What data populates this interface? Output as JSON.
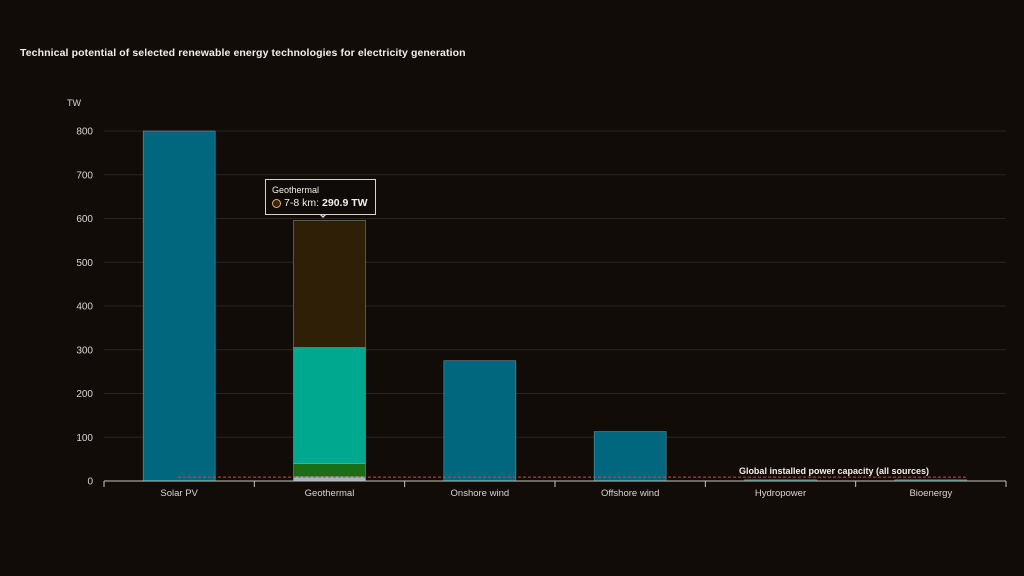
{
  "chart_data": {
    "type": "bar",
    "title": "Technical potential of selected renewable energy technologies for electricity generation",
    "unit": "TW",
    "ylim": [
      0,
      800
    ],
    "yticks": [
      0,
      100,
      200,
      300,
      400,
      500,
      600,
      700,
      800
    ],
    "grid": true,
    "categories": [
      "Solar PV",
      "Geothermal",
      "Onshore wind",
      "Offshore wind",
      "Hydropower",
      "Bioenergy"
    ],
    "bars": [
      {
        "category": "Solar PV",
        "segments": [
          {
            "value": 800,
            "color": "#00677f"
          }
        ]
      },
      {
        "category": "Geothermal",
        "segments": [
          {
            "value": 10,
            "color": "#9fb3c8"
          },
          {
            "value": 30,
            "color": "#1b6e16"
          },
          {
            "value": 265,
            "color": "#00a88f"
          },
          {
            "value": 290.9,
            "color": "#2f1f07",
            "name": "7-8 km"
          }
        ]
      },
      {
        "category": "Onshore wind",
        "segments": [
          {
            "value": 275,
            "color": "#00677f"
          }
        ]
      },
      {
        "category": "Offshore wind",
        "segments": [
          {
            "value": 113,
            "color": "#00677f"
          }
        ]
      },
      {
        "category": "Hydropower",
        "segments": [
          {
            "value": 1.5,
            "color": "#00677f"
          }
        ]
      },
      {
        "category": "Bioenergy",
        "segments": [
          {
            "value": 1,
            "color": "#00677f"
          }
        ]
      }
    ],
    "reference_line": {
      "label": "Global installed power capacity (all sources)",
      "value": 9,
      "color": "#e0423c"
    }
  },
  "tooltip": {
    "title": "Geothermal",
    "series": "7-8 km:",
    "value": "290.9 TW"
  },
  "colors": {
    "background": "#120c08",
    "grid": "#2a2420",
    "axis": "#c8c4bc",
    "text": "#d9d6d0"
  }
}
